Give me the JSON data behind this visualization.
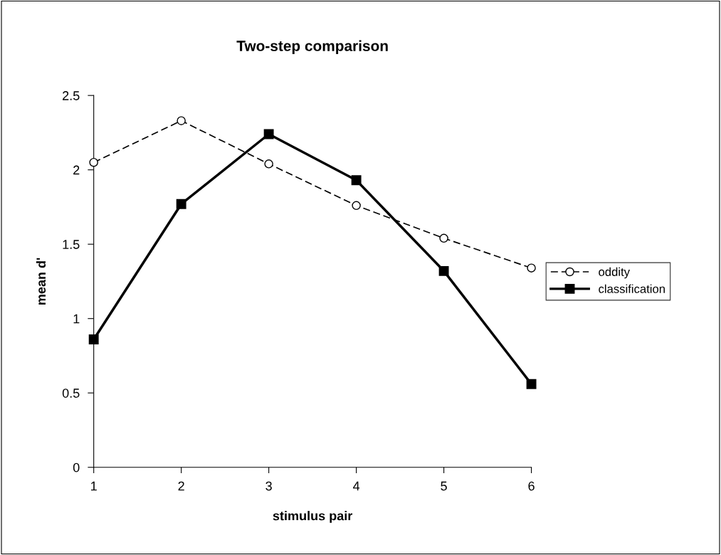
{
  "chart_data": {
    "type": "line",
    "title": "Two-step comparison",
    "xlabel": "stimulus pair",
    "ylabel": "mean d'",
    "categories": [
      "1",
      "2",
      "3",
      "4",
      "5",
      "6"
    ],
    "series": [
      {
        "name": "oddity",
        "color": "#000000",
        "values": [
          2.05,
          2.33,
          2.04,
          1.76,
          1.54,
          1.34
        ],
        "marker": "circle",
        "line_style": "dashed"
      },
      {
        "name": "classification",
        "color": "#000000",
        "values": [
          0.86,
          1.77,
          2.24,
          1.93,
          1.32,
          0.56
        ],
        "marker": "square",
        "line_style": "solid"
      }
    ],
    "ylim": [
      0,
      2.5
    ],
    "yticks": [
      0,
      0.5,
      1,
      1.5,
      2,
      2.5
    ],
    "grid": false,
    "legend": "right"
  }
}
